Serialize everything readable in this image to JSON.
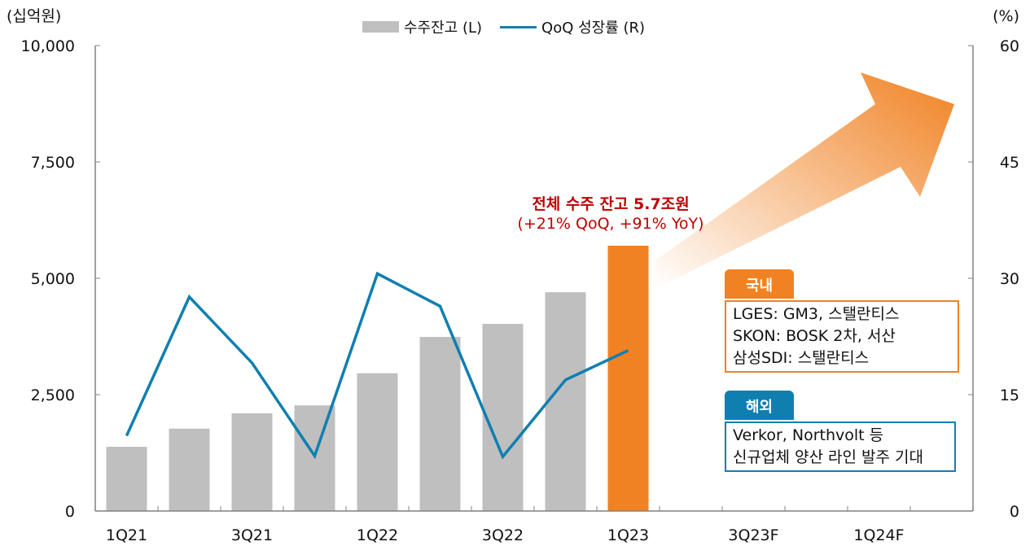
{
  "chart_data": {
    "type": "bar+line",
    "categories": [
      "1Q21",
      "",
      "3Q21",
      "",
      "1Q22",
      "",
      "3Q22",
      "",
      "1Q23",
      "",
      "3Q23F",
      "",
      "1Q24F",
      ""
    ],
    "series": [
      {
        "name": "수주잔고 (L)",
        "type": "bar",
        "axis": "left",
        "color": "#bfbfbf",
        "highlight_color": "#f08223",
        "highlight_index": 8,
        "values": [
          1380,
          1770,
          2100,
          2270,
          2960,
          3740,
          4020,
          4700,
          5700,
          null,
          null,
          null,
          null,
          null
        ]
      },
      {
        "name": "QoQ 성장률 (R)",
        "type": "line",
        "axis": "right",
        "color": "#0f7fb0",
        "values": [
          9.7,
          27.6,
          19.1,
          7.1,
          30.6,
          26.4,
          7.0,
          16.9,
          20.7,
          null,
          null,
          null,
          null,
          null
        ]
      }
    ],
    "left_axis": {
      "label": "(십억원)",
      "ylim": [
        0,
        10000
      ],
      "ticks": [
        "0",
        "2,500",
        "5,000",
        "7,500",
        "10,000"
      ],
      "tick_values": [
        0,
        2500,
        5000,
        7500,
        10000
      ]
    },
    "right_axis": {
      "label": "(%)",
      "ylim": [
        0,
        60
      ],
      "ticks": [
        "0",
        "15",
        "30",
        "45",
        "60"
      ],
      "tick_values": [
        0,
        15,
        30,
        45,
        60
      ]
    },
    "legend": "top-center",
    "grid": false,
    "annotation": {
      "title": "전체 수주 잔고 5.7조원",
      "subtitle": "(+21% QoQ, +91% YoY)",
      "color": "#c00000"
    },
    "arrow_color": "#f08223"
  },
  "domestic": {
    "tab": "국내",
    "lines": [
      "LGES: GM3, 스탤란티스",
      "SKON: BOSK 2차, 서산",
      "삼성SDI: 스탤란티스"
    ],
    "color": "#f08223"
  },
  "overseas": {
    "tab": "해외",
    "lines": [
      "Verkor, Northvolt 등",
      "신규업체 양산 라인 발주 기대"
    ],
    "color": "#0f7fb0"
  }
}
